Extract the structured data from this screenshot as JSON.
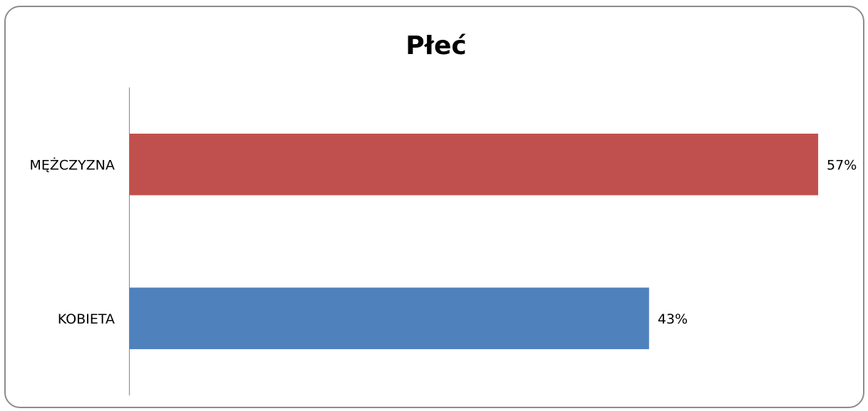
{
  "chart_data": {
    "type": "bar",
    "orientation": "horizontal",
    "title": "Płeć",
    "xlabel": "",
    "ylabel": "",
    "categories": [
      "MĘŻCZYZNA",
      "KOBIETA"
    ],
    "values": [
      57,
      43
    ],
    "value_labels": [
      "57%",
      "43%"
    ],
    "colors": [
      "#c0504d",
      "#4f81bd"
    ],
    "xlim": [
      0,
      58
    ],
    "grid": false,
    "legend": "none"
  }
}
